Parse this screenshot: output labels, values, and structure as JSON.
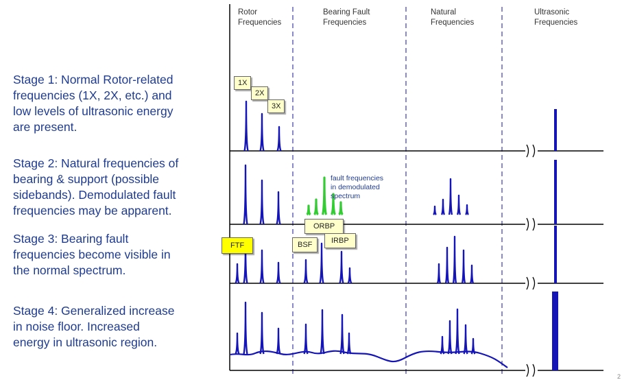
{
  "columns": [
    {
      "line1": "Rotor",
      "line2": "Frequencies"
    },
    {
      "line1": "Bearing Fault",
      "line2": "Frequencies"
    },
    {
      "line1": "Natural",
      "line2": "Frequencies"
    },
    {
      "line1": "Ultrasonic",
      "line2": "Frequencies"
    }
  ],
  "stages": [
    {
      "lines": [
        "Stage 1: Normal Rotor-related",
        "frequencies (1X, 2X, etc.) and",
        "low levels of ultrasonic energy",
        "are present."
      ]
    },
    {
      "lines": [
        "Stage 2: Natural frequencies of",
        "bearing & support (possible",
        "sidebands).  Demodulated fault",
        "frequencies may be apparent."
      ]
    },
    {
      "lines": [
        "Stage 3: Bearing fault",
        "frequencies become visible in",
        "the normal spectrum."
      ]
    },
    {
      "lines": [
        "Stage 4: Generalized increase",
        "in noise floor.  Increased",
        "energy in ultrasonic region."
      ]
    }
  ],
  "labels": {
    "one_x": "1X",
    "two_x": "2X",
    "three_x": "3X",
    "ftf": "FTF",
    "bsf": "BSF",
    "orbp": "ORBP",
    "irbp": "IRBP"
  },
  "annotation": {
    "lines": [
      "fault frequencies",
      "in demodulated",
      "spectrum"
    ]
  },
  "page_number": "2",
  "colors": {
    "stage_text": "#1f3b8f",
    "peak": "#1515b5",
    "demod_peak": "#33cc33",
    "axis": "#000000",
    "divider": "#3a3aa8",
    "label_bg": "#ffffcc",
    "ftf_bg": "#ffff00"
  }
}
